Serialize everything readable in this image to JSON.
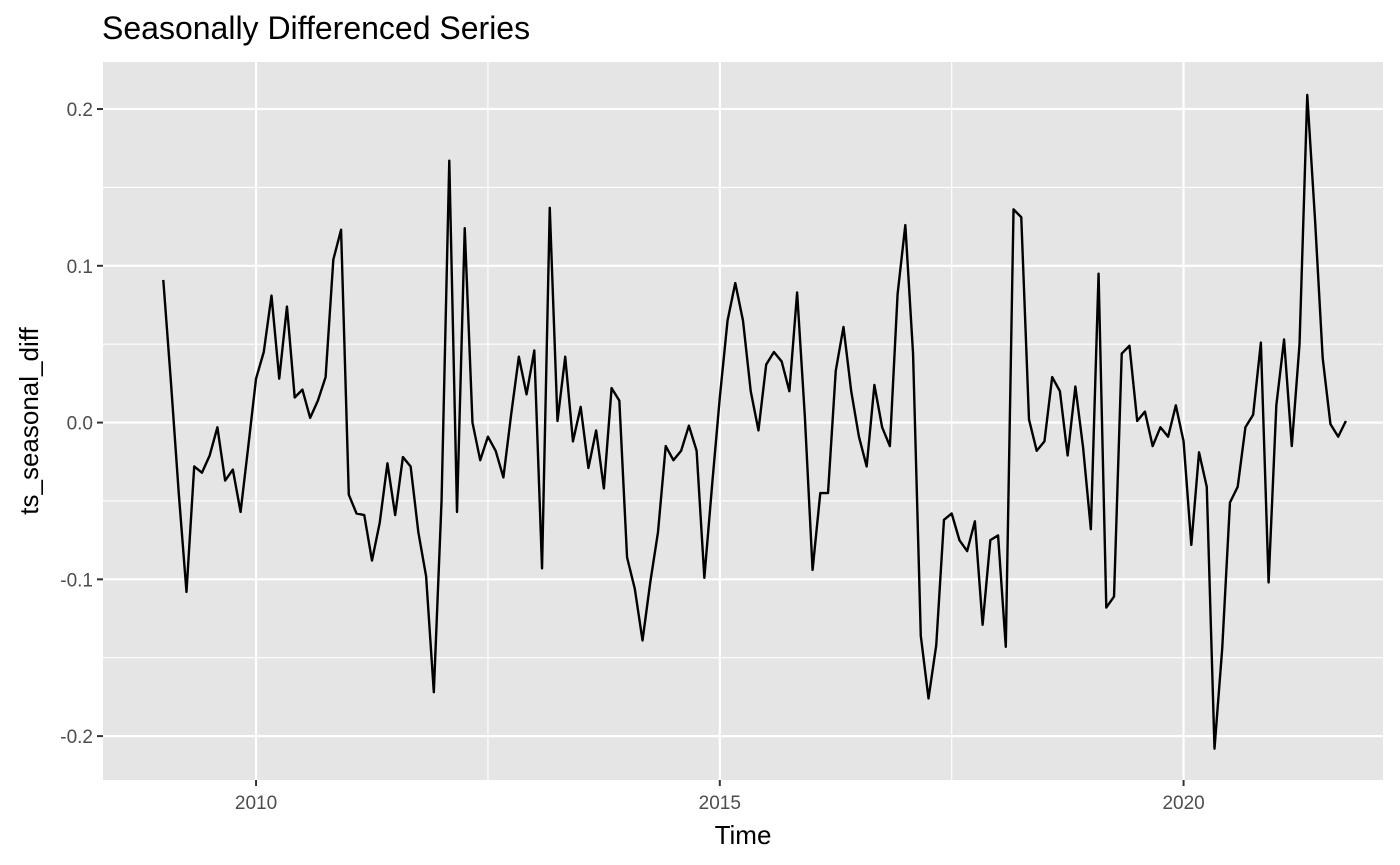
{
  "chart_data": {
    "type": "line",
    "title": "Seasonally Differenced Series",
    "xlabel": "Time",
    "ylabel": "ts_seasonal_diff",
    "xlim": [
      2008.35,
      2022.15
    ],
    "ylim": [
      -0.228,
      0.23
    ],
    "x_ticks": [
      2010,
      2015,
      2020
    ],
    "x_tick_labels": [
      "2010",
      "2015",
      "2020"
    ],
    "y_ticks": [
      -0.2,
      -0.1,
      0.0,
      0.1,
      0.2
    ],
    "y_tick_labels": [
      "-0.2",
      "-0.1",
      "0.0",
      "0.1",
      "0.2"
    ],
    "grid": true,
    "legend": "none",
    "colors": {
      "panel_background": "#e5e5e5",
      "grid": "#ffffff",
      "line": "#000000",
      "tick_label": "#4d4d4d"
    },
    "series": [
      {
        "start": 2009.0,
        "frequency": 12,
        "values": [
          0.091,
          0.025,
          -0.045,
          -0.108,
          -0.028,
          -0.032,
          -0.021,
          -0.003,
          -0.037,
          -0.03,
          -0.057,
          -0.015,
          0.028,
          0.045,
          0.081,
          0.028,
          0.074,
          0.016,
          0.021,
          0.003,
          0.014,
          0.029,
          0.104,
          0.123,
          -0.046,
          -0.058,
          -0.059,
          -0.088,
          -0.064,
          -0.026,
          -0.059,
          -0.022,
          -0.028,
          -0.07,
          -0.098,
          -0.172,
          -0.05,
          0.167,
          -0.057,
          0.124,
          0.0,
          -0.024,
          -0.009,
          -0.018,
          -0.035,
          0.005,
          0.042,
          0.018,
          0.046,
          -0.093,
          0.137,
          0.001,
          0.042,
          -0.012,
          0.01,
          -0.029,
          -0.005,
          -0.042,
          0.022,
          0.014,
          -0.086,
          -0.106,
          -0.139,
          -0.102,
          -0.07,
          -0.015,
          -0.024,
          -0.018,
          -0.002,
          -0.018,
          -0.099,
          -0.04,
          0.016,
          0.065,
          0.089,
          0.065,
          0.02,
          -0.005,
          0.037,
          0.045,
          0.039,
          0.02,
          0.083,
          0.004,
          -0.094,
          -0.045,
          -0.045,
          0.033,
          0.061,
          0.02,
          -0.009,
          -0.028,
          0.024,
          -0.003,
          -0.015,
          0.082,
          0.126,
          0.044,
          -0.136,
          -0.176,
          -0.142,
          -0.062,
          -0.058,
          -0.075,
          -0.082,
          -0.063,
          -0.129,
          -0.075,
          -0.072,
          -0.143,
          0.136,
          0.131,
          0.002,
          -0.018,
          -0.012,
          0.029,
          0.02,
          -0.021,
          0.023,
          -0.016,
          -0.068,
          0.095,
          -0.118,
          -0.111,
          0.044,
          0.049,
          0.001,
          0.007,
          -0.015,
          -0.003,
          -0.009,
          0.011,
          -0.012,
          -0.078,
          -0.019,
          -0.041,
          -0.208,
          -0.144,
          -0.051,
          -0.041,
          -0.003,
          0.005,
          0.051,
          -0.102,
          0.011,
          0.053,
          -0.015,
          0.05,
          0.209,
          0.13,
          0.041,
          -0.001,
          -0.009,
          0.001
        ]
      }
    ]
  }
}
